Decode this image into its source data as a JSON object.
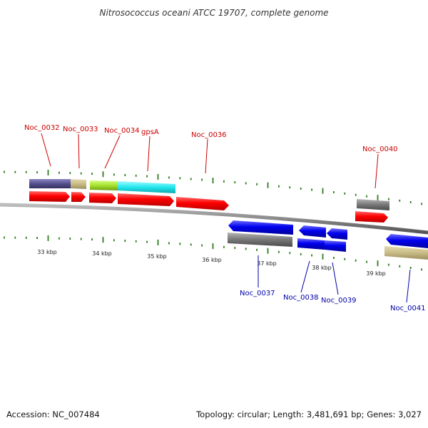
{
  "title": "Nitrosococcus oceani ATCC 19707, complete genome",
  "accession": "Accession: NC_007484",
  "summary": "Topology: circular; Length: 3,481,691 bp; Genes: 3,027",
  "colors": {
    "label_top": "#cc0000",
    "label_bottom": "#0000aa",
    "tick": "#2e7d1e",
    "backbone": "#888888",
    "cds_red": "#ff0000",
    "cds_blue": "#0000ee",
    "gray": "#777777",
    "purple": "#55508e",
    "tan": "#c8bb86",
    "lime": "#a6e22e",
    "cyan": "#22e6ee"
  },
  "scale_labels": [
    "33 kbp",
    "34 kbp",
    "35 kbp",
    "36 kbp",
    "37 kbp",
    "38 kbp",
    "39 kbp"
  ],
  "top_labels": [
    "Noc_0032",
    "Noc_0033",
    "Noc_0034",
    "gpsA",
    "Noc_0036",
    "Noc_0040"
  ],
  "bottom_labels": [
    "Noc_0037",
    "Noc_0038",
    "Noc_0039",
    "Noc_0041"
  ]
}
